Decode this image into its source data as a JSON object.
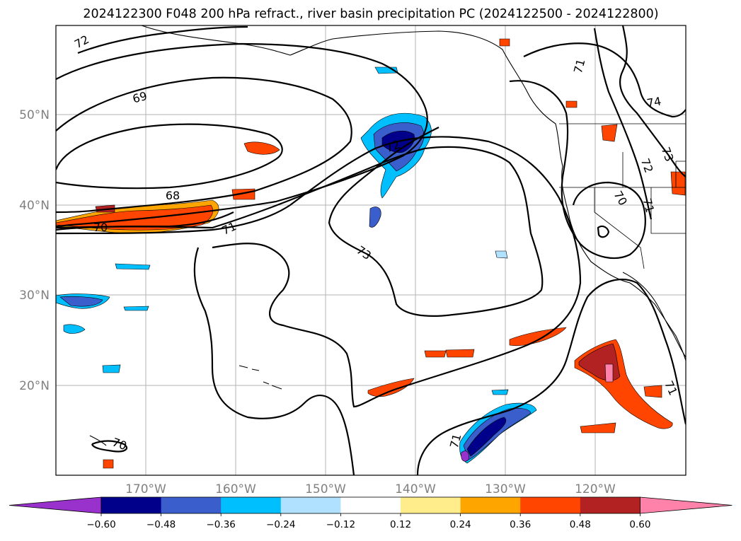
{
  "title": "2024122300 F048 200 hPa refract., river basin precipitation PC (2024122500 - 2024122800)",
  "lat_ticks": [
    "50°N",
    "40°N",
    "30°N",
    "20°N"
  ],
  "lon_ticks": [
    "170°W",
    "160°W",
    "150°W",
    "140°W",
    "130°W",
    "120°W"
  ],
  "colorbar": {
    "colors": [
      "#9932cc",
      "#00008b",
      "#3a5fcd",
      "#00bfff",
      "#b0e2ff",
      "#ffffff",
      "#ffec8b",
      "#ffa500",
      "#ff4500",
      "#b22222",
      "#ff82ab"
    ],
    "tick_labels": [
      "−0.60",
      "−0.48",
      "−0.36",
      "−0.24",
      "−0.12",
      "0.12",
      "0.24",
      "0.36",
      "0.48",
      "0.60"
    ]
  },
  "contour_labels": [
    "72",
    "69",
    "68",
    "70",
    "71",
    "72",
    "73",
    "70",
    "71",
    "71",
    "74",
    "73",
    "72",
    "70",
    "71",
    "71"
  ]
}
